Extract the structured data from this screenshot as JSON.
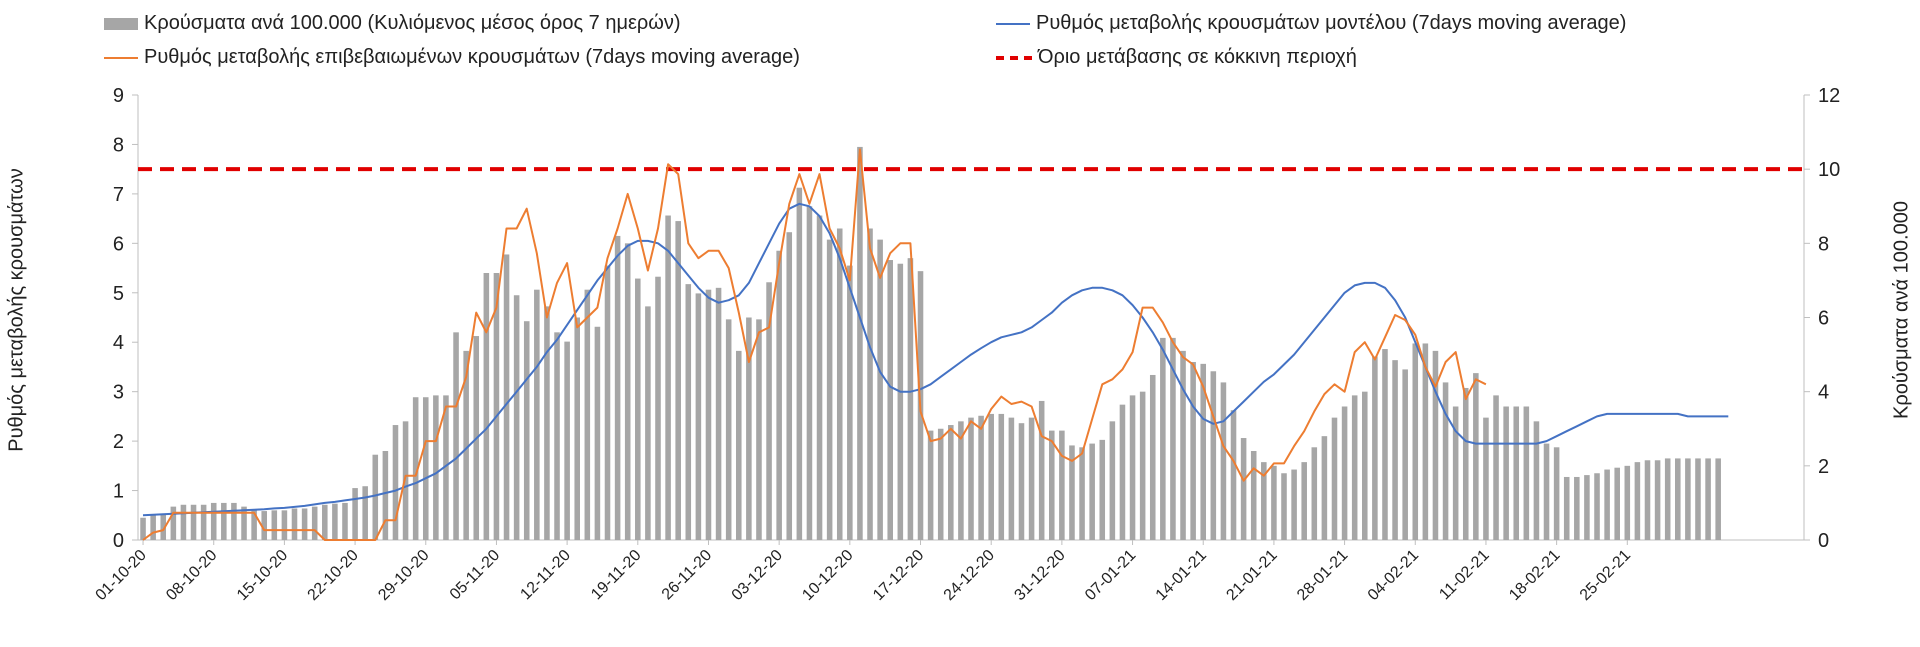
{
  "chart_data": {
    "type": "bar+line",
    "start_date": "01-10-20",
    "xlabels": [
      "01-10-20",
      "08-10-20",
      "15-10-20",
      "22-10-20",
      "29-10-20",
      "05-11-20",
      "12-11-20",
      "19-11-20",
      "26-11-20",
      "03-12-20",
      "10-12-20",
      "17-12-20",
      "24-12-20",
      "31-12-20",
      "07-01-21",
      "14-01-21",
      "21-01-21",
      "28-01-21",
      "04-02-21",
      "11-02-21",
      "18-02-21",
      "25-02-21"
    ],
    "left_axis": {
      "title": "Ρυθμός μεταβολής κρουσμάτων",
      "min": 0,
      "max": 9,
      "ticks": [
        0,
        1,
        2,
        3,
        4,
        5,
        6,
        7,
        8,
        9
      ]
    },
    "right_axis": {
      "title": "Κρούσματα ανά 100.000",
      "min": 0,
      "max": 12,
      "ticks": [
        0,
        2,
        4,
        6,
        8,
        10,
        12
      ]
    },
    "legend": {
      "bars": "Κρούσματα ανά 100.000 (Κυλιόμενος μέσος όρος 7 ημερών)",
      "model": "Ρυθμός μεταβολής κρουσμάτων μοντέλου (7days moving average)",
      "confirmed": "Ρυθμός μεταβολής επιβεβαιωμένων κρουσμάτων (7days moving average)",
      "threshold": "Όριο μετάβασης σε κόκκινη περιοχή"
    },
    "colors": {
      "bars": "#a6a6a6",
      "model": "#4472c4",
      "confirmed": "#ed7d31",
      "threshold": "#e00000"
    },
    "threshold_value_right": 10,
    "bars_right_axis": [
      0.6,
      0.7,
      0.7,
      0.9,
      0.95,
      0.95,
      0.95,
      1.0,
      1.0,
      1.0,
      0.9,
      0.8,
      0.78,
      0.8,
      0.8,
      0.85,
      0.85,
      0.9,
      0.95,
      0.98,
      1.0,
      1.4,
      1.45,
      2.3,
      2.4,
      3.1,
      3.2,
      3.85,
      3.85,
      3.9,
      3.9,
      5.6,
      5.1,
      5.5,
      7.2,
      7.2,
      7.7,
      6.6,
      5.9,
      6.75,
      6.3,
      5.6,
      5.35,
      6.0,
      6.75,
      5.75,
      7.4,
      8.2,
      8.0,
      7.05,
      6.3,
      7.1,
      8.75,
      8.6,
      6.9,
      6.65,
      6.75,
      6.8,
      5.95,
      5.1,
      6.0,
      5.95,
      6.95,
      7.8,
      8.3,
      9.5,
      9.0,
      8.75,
      8.1,
      8.4,
      7.4,
      10.6,
      8.4,
      8.1,
      7.55,
      7.45,
      7.6,
      7.25,
      2.95,
      3.0,
      3.1,
      3.2,
      3.3,
      3.35,
      3.4,
      3.4,
      3.3,
      3.15,
      3.3,
      3.75,
      2.95,
      2.95,
      2.55,
      2.5,
      2.6,
      2.7,
      3.2,
      3.65,
      3.9,
      4.0,
      4.45,
      5.45,
      5.45,
      5.1,
      4.8,
      4.75,
      4.55,
      4.25,
      3.5,
      2.75,
      2.4,
      2.1,
      2.0,
      1.8,
      1.9,
      2.1,
      2.5,
      2.8,
      3.3,
      3.6,
      3.9,
      4.0,
      4.95,
      5.15,
      4.85,
      4.6,
      5.3,
      5.3,
      5.1,
      4.25,
      3.6,
      4.1,
      4.5,
      3.3,
      3.9,
      3.6,
      3.6,
      3.6,
      3.2,
      2.6,
      2.5,
      1.7,
      1.7,
      1.75,
      1.8,
      1.9,
      1.95,
      2.0,
      2.1,
      2.15,
      2.15,
      2.2,
      2.2,
      2.2,
      2.2,
      2.2,
      2.2
    ],
    "model_left_axis": [
      0.5,
      0.51,
      0.52,
      0.53,
      0.54,
      0.55,
      0.56,
      0.57,
      0.58,
      0.59,
      0.6,
      0.61,
      0.62,
      0.64,
      0.65,
      0.67,
      0.69,
      0.72,
      0.75,
      0.77,
      0.8,
      0.83,
      0.86,
      0.9,
      0.95,
      1.0,
      1.08,
      1.15,
      1.25,
      1.35,
      1.5,
      1.65,
      1.85,
      2.05,
      2.25,
      2.5,
      2.75,
      3.0,
      3.25,
      3.5,
      3.8,
      4.05,
      4.35,
      4.65,
      4.95,
      5.25,
      5.5,
      5.75,
      5.95,
      6.05,
      6.05,
      6.0,
      5.85,
      5.6,
      5.35,
      5.1,
      4.9,
      4.8,
      4.85,
      4.95,
      5.2,
      5.6,
      6.0,
      6.4,
      6.7,
      6.8,
      6.75,
      6.55,
      6.2,
      5.7,
      5.1,
      4.5,
      3.9,
      3.4,
      3.1,
      3.0,
      3.0,
      3.05,
      3.15,
      3.3,
      3.45,
      3.6,
      3.75,
      3.88,
      4.0,
      4.1,
      4.15,
      4.2,
      4.3,
      4.45,
      4.6,
      4.8,
      4.95,
      5.05,
      5.1,
      5.1,
      5.05,
      4.95,
      4.75,
      4.5,
      4.2,
      3.85,
      3.45,
      3.05,
      2.7,
      2.45,
      2.35,
      2.4,
      2.6,
      2.8,
      3.0,
      3.2,
      3.35,
      3.55,
      3.75,
      4.0,
      4.25,
      4.5,
      4.75,
      5.0,
      5.15,
      5.2,
      5.2,
      5.1,
      4.85,
      4.5,
      4.0,
      3.5,
      3.0,
      2.55,
      2.2,
      2.0,
      1.95,
      1.95,
      1.95,
      1.95,
      1.95,
      1.95,
      1.95,
      2.0,
      2.1,
      2.2,
      2.3,
      2.4,
      2.5,
      2.55,
      2.55,
      2.55,
      2.55,
      2.55,
      2.55,
      2.55,
      2.55,
      2.5,
      2.5,
      2.5,
      2.5,
      2.5
    ],
    "confirmed_left_axis": [
      0.0,
      0.15,
      0.2,
      0.55,
      0.55,
      0.55,
      0.55,
      0.55,
      0.55,
      0.55,
      0.55,
      0.55,
      0.2,
      0.2,
      0.2,
      0.2,
      0.2,
      0.2,
      0.0,
      0.0,
      0.0,
      0.0,
      0.0,
      0.0,
      0.4,
      0.4,
      1.3,
      1.3,
      2.0,
      2.0,
      2.7,
      2.7,
      3.3,
      4.6,
      4.2,
      4.7,
      6.3,
      6.3,
      6.7,
      5.8,
      4.5,
      5.2,
      5.6,
      4.3,
      4.5,
      4.7,
      5.7,
      6.3,
      7.0,
      6.3,
      5.45,
      6.3,
      7.6,
      7.4,
      6.0,
      5.7,
      5.85,
      5.85,
      5.5,
      4.6,
      3.6,
      4.2,
      4.3,
      5.6,
      6.8,
      7.4,
      6.8,
      7.4,
      6.3,
      5.9,
      5.25,
      7.9,
      5.9,
      5.3,
      5.8,
      6.0,
      6.0,
      2.6,
      2.0,
      2.05,
      2.25,
      2.05,
      2.4,
      2.25,
      2.65,
      2.9,
      2.75,
      2.8,
      2.7,
      2.1,
      2.0,
      1.7,
      1.6,
      1.75,
      2.45,
      3.15,
      3.25,
      3.45,
      3.8,
      4.7,
      4.7,
      4.4,
      4.0,
      3.7,
      3.55,
      3.1,
      2.5,
      1.9,
      1.6,
      1.2,
      1.45,
      1.3,
      1.55,
      1.55,
      1.9,
      2.2,
      2.6,
      2.95,
      3.15,
      3.0,
      3.8,
      4.0,
      3.65,
      4.1,
      4.55,
      4.45,
      4.15,
      3.5,
      3.1,
      3.6,
      3.8,
      2.85,
      3.25,
      3.15
    ]
  }
}
